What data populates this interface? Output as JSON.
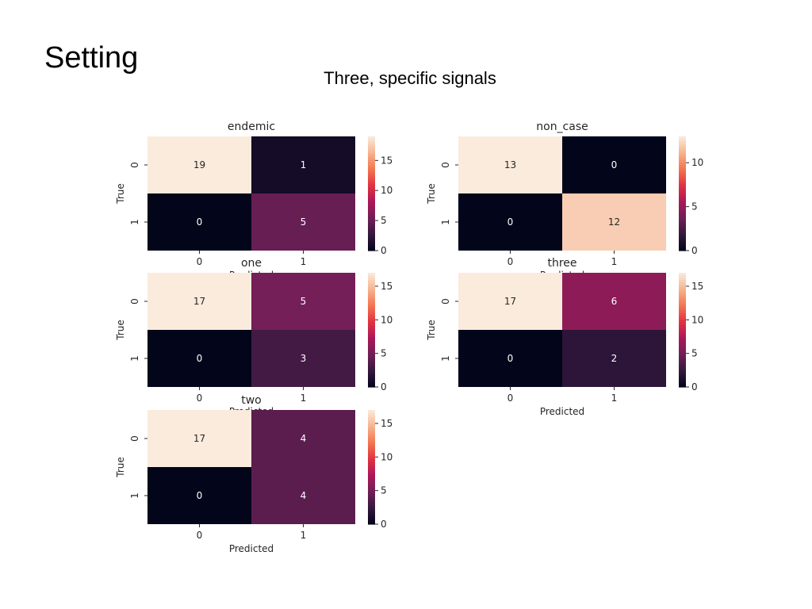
{
  "slide": {
    "title": "Setting",
    "subtitle": "Three, specific signals"
  },
  "colormap": {
    "name": "rocket",
    "stops": [
      "#03051a",
      "#35193e",
      "#701f57",
      "#ad1759",
      "#e13342",
      "#f37651",
      "#f6b48f",
      "#faebdd"
    ]
  },
  "chart_data": [
    {
      "type": "heatmap",
      "title": "endemic",
      "xlabel": "Predicted",
      "ylabel": "True",
      "x_tick_labels": [
        "0",
        "1"
      ],
      "y_tick_labels": [
        "0",
        "1"
      ],
      "values": [
        [
          19,
          1
        ],
        [
          0,
          5
        ]
      ],
      "colorbar": {
        "range": [
          0,
          19
        ],
        "ticks": [
          0,
          5,
          10,
          15
        ]
      }
    },
    {
      "type": "heatmap",
      "title": "non_case",
      "xlabel": "Predicted",
      "ylabel": "True",
      "x_tick_labels": [
        "0",
        "1"
      ],
      "y_tick_labels": [
        "0",
        "1"
      ],
      "values": [
        [
          13,
          0
        ],
        [
          0,
          12
        ]
      ],
      "colorbar": {
        "range": [
          0,
          13
        ],
        "ticks": [
          0,
          5,
          10
        ]
      }
    },
    {
      "type": "heatmap",
      "title": "one",
      "xlabel": "Predicted",
      "ylabel": "True",
      "x_tick_labels": [
        "0",
        "1"
      ],
      "y_tick_labels": [
        "0",
        "1"
      ],
      "values": [
        [
          17,
          5
        ],
        [
          0,
          3
        ]
      ],
      "colorbar": {
        "range": [
          0,
          17
        ],
        "ticks": [
          0,
          5,
          10,
          15
        ]
      }
    },
    {
      "type": "heatmap",
      "title": "three",
      "xlabel": "Predicted",
      "ylabel": "True",
      "x_tick_labels": [
        "0",
        "1"
      ],
      "y_tick_labels": [
        "0",
        "1"
      ],
      "values": [
        [
          17,
          6
        ],
        [
          0,
          2
        ]
      ],
      "colorbar": {
        "range": [
          0,
          17
        ],
        "ticks": [
          0,
          5,
          10,
          15
        ]
      }
    },
    {
      "type": "heatmap",
      "title": "two",
      "xlabel": "Predicted",
      "ylabel": "True",
      "x_tick_labels": [
        "0",
        "1"
      ],
      "y_tick_labels": [
        "0",
        "1"
      ],
      "values": [
        [
          17,
          4
        ],
        [
          0,
          4
        ]
      ],
      "colorbar": {
        "range": [
          0,
          17
        ],
        "ticks": [
          0,
          5,
          10,
          15
        ]
      }
    }
  ]
}
